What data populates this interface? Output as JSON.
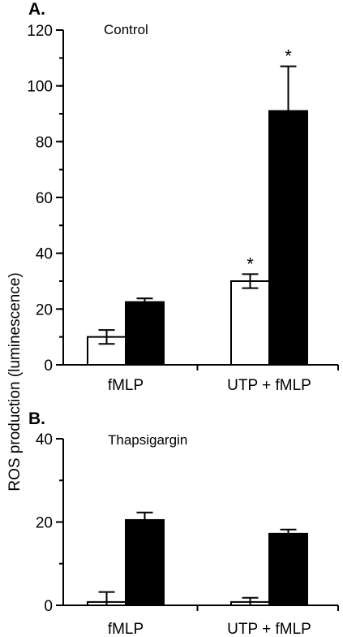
{
  "ylabel": "ROS production (luminescence)",
  "chart_data": [
    {
      "type": "bar",
      "panel_label": "A.",
      "title": "Control",
      "categories": [
        "fMLP",
        "UTP + fMLP"
      ],
      "ylim": [
        0,
        120
      ],
      "yticks": [
        0,
        20,
        40,
        60,
        80,
        100,
        120
      ],
      "series": [
        {
          "fill": "#ffffff",
          "values": [
            10,
            30
          ],
          "errors": [
            2.5,
            2.5
          ]
        },
        {
          "fill": "#000000",
          "values": [
            22.5,
            91
          ],
          "errors": [
            1.3,
            16
          ]
        }
      ],
      "annotations": [
        {
          "category_index": 1,
          "series_index": 0,
          "text": "*"
        },
        {
          "category_index": 1,
          "series_index": 1,
          "text": "*"
        }
      ]
    },
    {
      "type": "bar",
      "panel_label": "B.",
      "title": "Thapsigargin",
      "categories": [
        "fMLP",
        "UTP + fMLP"
      ],
      "ylim": [
        0,
        40
      ],
      "yticks": [
        0,
        20,
        40
      ],
      "series": [
        {
          "fill": "#ffffff",
          "values": [
            0.8,
            0.8
          ],
          "errors": [
            2.4,
            1.0
          ]
        },
        {
          "fill": "#000000",
          "values": [
            20.5,
            17.2
          ],
          "errors": [
            1.8,
            1.0
          ]
        }
      ],
      "annotations": []
    }
  ]
}
